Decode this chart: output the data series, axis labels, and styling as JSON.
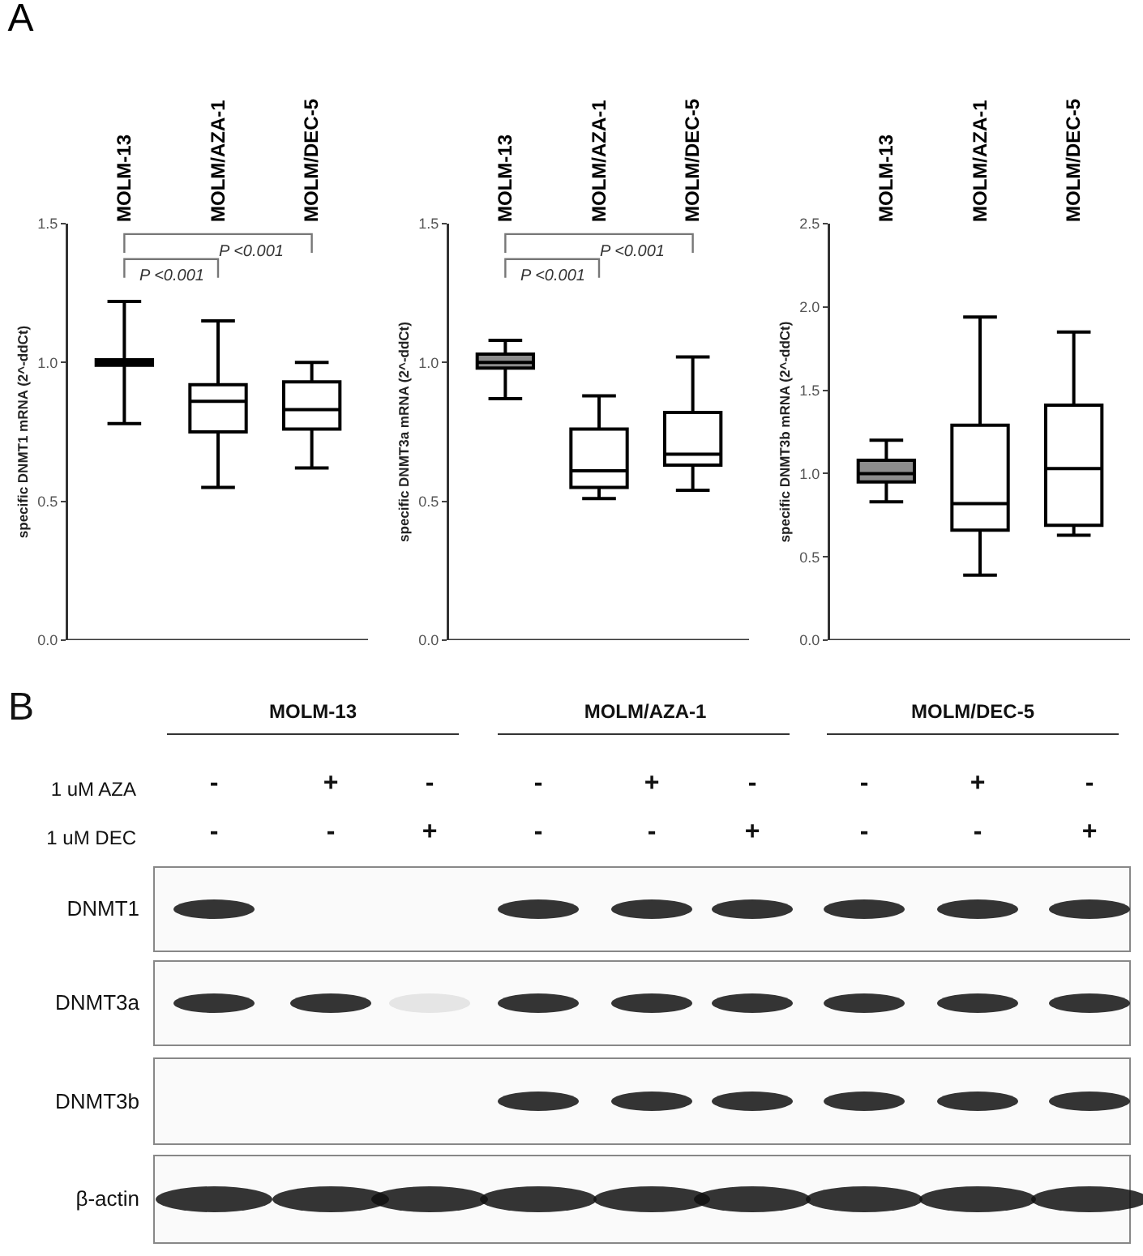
{
  "chart_data": [
    {
      "type": "box",
      "title": "A",
      "categories": [
        "MOLM-13",
        "MOLM/AZA-1",
        "MOLM/DEC-5"
      ],
      "ylabel": "specific DNMT1 mRNA (2^-ddCt)",
      "ylim": [
        0,
        1.5
      ],
      "yticks": [
        {
          "value": 0,
          "label": "0.0"
        },
        {
          "value": 0.5,
          "label": "0.5"
        },
        {
          "value": 1,
          "label": "1.0"
        },
        {
          "value": 1.5,
          "label": "1.5"
        }
      ],
      "colors": [
        "#8c8c8c",
        "#ffffff",
        "#ffffff"
      ],
      "boxes": [
        {
          "low": 0.78,
          "q1": 0.99,
          "median": 1.0,
          "q3": 1.01,
          "high": 1.22
        },
        {
          "low": 0.55,
          "q1": 0.75,
          "median": 0.86,
          "q3": 0.92,
          "high": 1.15
        },
        {
          "low": 0.62,
          "q1": 0.76,
          "median": 0.83,
          "q3": 0.93,
          "high": 1.0
        }
      ],
      "annotations": [
        "P <0.001",
        "P <0.001"
      ]
    },
    {
      "type": "box",
      "categories": [
        "MOLM-13",
        "MOLM/AZA-1",
        "MOLM/DEC-5"
      ],
      "ylabel": "specific DNMT3a mRNA (2^-ddCt)",
      "ylim": [
        0,
        1.5
      ],
      "yticks": [
        {
          "value": 0,
          "label": "0.0"
        },
        {
          "value": 0.5,
          "label": "0.5"
        },
        {
          "value": 1,
          "label": "1.0"
        },
        {
          "value": 1.5,
          "label": "1.5"
        }
      ],
      "colors": [
        "#8c8c8c",
        "#ffffff",
        "#ffffff"
      ],
      "boxes": [
        {
          "low": 0.87,
          "q1": 0.98,
          "median": 1.0,
          "q3": 1.03,
          "high": 1.08
        },
        {
          "low": 0.51,
          "q1": 0.55,
          "median": 0.61,
          "q3": 0.76,
          "high": 0.88
        },
        {
          "low": 0.54,
          "q1": 0.63,
          "median": 0.67,
          "q3": 0.82,
          "high": 1.02
        }
      ],
      "annotations": [
        "P <0.001",
        "P <0.001"
      ]
    },
    {
      "type": "box",
      "categories": [
        "MOLM-13",
        "MOLM/AZA-1",
        "MOLM/DEC-5"
      ],
      "ylabel": "specific DNMT3b mRNA (2^-ddCt)",
      "ylim": [
        0,
        2.5
      ],
      "yticks": [
        {
          "value": 0,
          "label": "0.0"
        },
        {
          "value": 0.5,
          "label": "0.5"
        },
        {
          "value": 1,
          "label": "1.0"
        },
        {
          "value": 1.5,
          "label": "1.5"
        },
        {
          "value": 2,
          "label": "2.0"
        },
        {
          "value": 2.5,
          "label": "2.5"
        }
      ],
      "colors": [
        "#8c8c8c",
        "#ffffff",
        "#ffffff"
      ],
      "boxes": [
        {
          "low": 0.83,
          "q1": 0.95,
          "median": 1.0,
          "q3": 1.08,
          "high": 1.2
        },
        {
          "low": 0.39,
          "q1": 0.66,
          "median": 0.82,
          "q3": 1.29,
          "high": 1.94
        },
        {
          "low": 0.63,
          "q1": 0.69,
          "median": 1.03,
          "q3": 1.41,
          "high": 1.85
        }
      ]
    },
    {
      "type": "other",
      "title": "B",
      "annotations": [
        "MOLM-13",
        "MOLM/AZA-1",
        "MOLM/DEC-5",
        "1 uM AZA",
        "1 uM DEC",
        "DNMT1",
        "DNMT3a",
        "DNMT3b",
        "β-actin",
        "-",
        "+",
        "-",
        "-",
        "+",
        "-",
        "-",
        "+",
        "-",
        "-",
        "-",
        "+",
        "-",
        "-",
        "+",
        "-",
        "-",
        "+"
      ]
    }
  ]
}
